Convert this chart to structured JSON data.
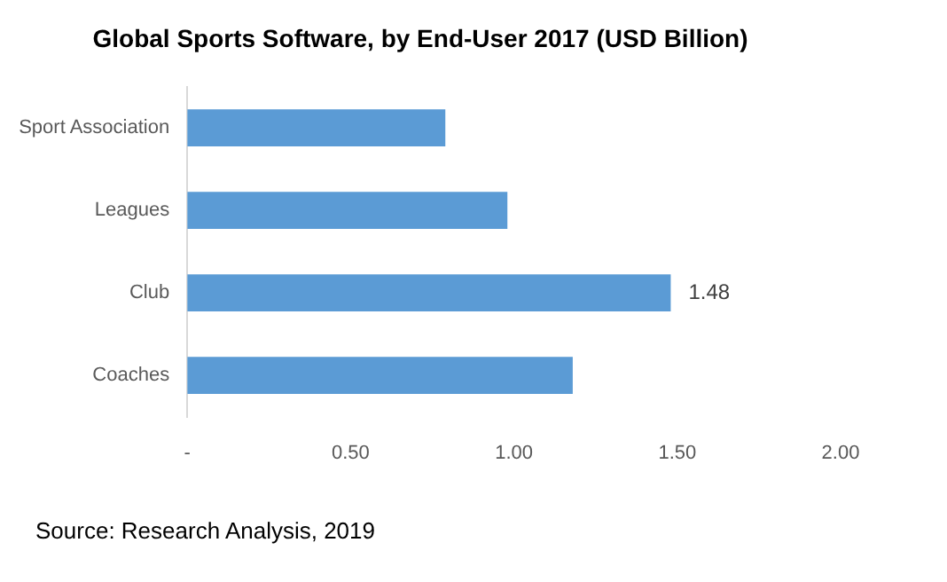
{
  "chart_data": {
    "type": "bar",
    "orientation": "horizontal",
    "title": "Global Sports Software, by End-User 2017 (USD Billion)",
    "categories": [
      "Sport Association",
      "Leagues",
      "Club",
      "Coaches"
    ],
    "values": [
      0.79,
      0.98,
      1.48,
      1.18
    ],
    "color": "#5b9bd5",
    "value_labels": [
      null,
      null,
      "1.48",
      null
    ],
    "xlim": [
      0,
      2
    ],
    "xticks": [
      {
        "value": 0,
        "label": "-"
      },
      {
        "value": 0.5,
        "label": "0.50"
      },
      {
        "value": 1,
        "label": "1.00"
      },
      {
        "value": 1.5,
        "label": "1.50"
      },
      {
        "value": 2,
        "label": "2.00"
      }
    ],
    "grid": false,
    "legend": false,
    "annotations": [
      "Source: Research Analysis, 2019"
    ]
  }
}
